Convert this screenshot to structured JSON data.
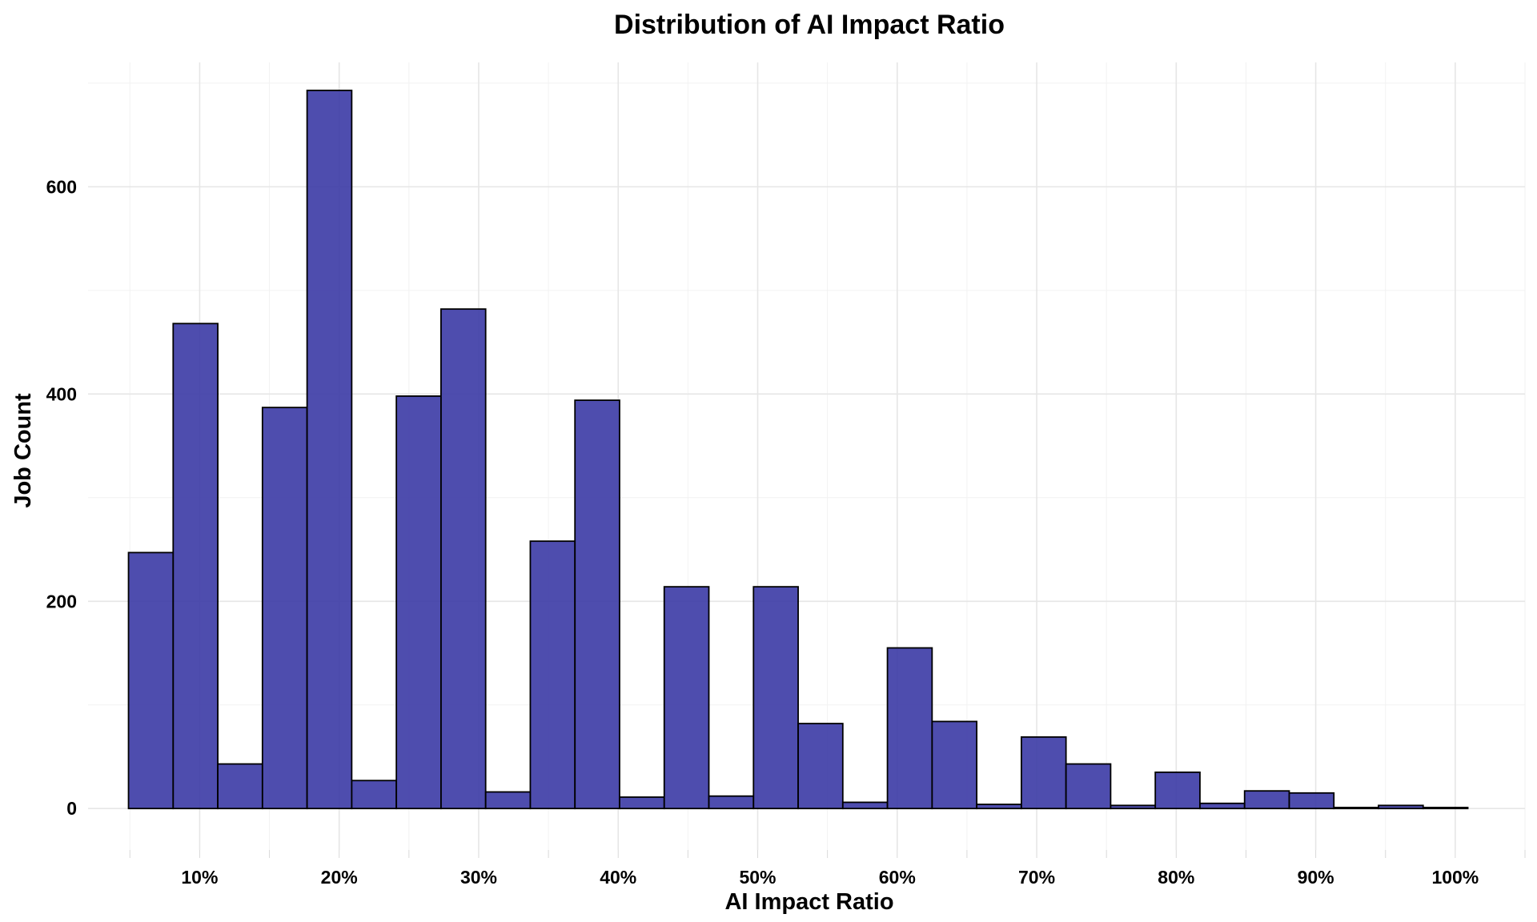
{
  "chart_data": {
    "type": "bar",
    "chart_subtype": "histogram",
    "title": "Distribution of AI Impact Ratio",
    "xlabel": "AI Impact Ratio",
    "ylabel": "Job Count",
    "bar_color": "#3b3aa5",
    "bar_outline_color": "#000000",
    "grid": true,
    "legend": "none",
    "xlim": [
      0.02,
      1.05
    ],
    "ylim": [
      -40,
      720
    ],
    "x_ticks": [
      0.1,
      0.2,
      0.3,
      0.4,
      0.5,
      0.6,
      0.7,
      0.8,
      0.9,
      1.0
    ],
    "x_tick_labels": [
      "10%",
      "20%",
      "30%",
      "40%",
      "50%",
      "60%",
      "70%",
      "80%",
      "90%",
      "100%"
    ],
    "y_ticks": [
      0,
      200,
      400,
      600
    ],
    "y_tick_labels": [
      "0",
      "200",
      "400",
      "600"
    ],
    "bins": [
      {
        "x0": 0.049,
        "x1": 0.081,
        "count": 247
      },
      {
        "x0": 0.081,
        "x1": 0.113,
        "count": 468
      },
      {
        "x0": 0.113,
        "x1": 0.145,
        "count": 43
      },
      {
        "x0": 0.145,
        "x1": 0.177,
        "count": 387
      },
      {
        "x0": 0.177,
        "x1": 0.209,
        "count": 693
      },
      {
        "x0": 0.209,
        "x1": 0.241,
        "count": 27
      },
      {
        "x0": 0.241,
        "x1": 0.273,
        "count": 398
      },
      {
        "x0": 0.273,
        "x1": 0.305,
        "count": 482
      },
      {
        "x0": 0.305,
        "x1": 0.337,
        "count": 16
      },
      {
        "x0": 0.337,
        "x1": 0.369,
        "count": 258
      },
      {
        "x0": 0.369,
        "x1": 0.401,
        "count": 394
      },
      {
        "x0": 0.401,
        "x1": 0.433,
        "count": 11
      },
      {
        "x0": 0.433,
        "x1": 0.465,
        "count": 214
      },
      {
        "x0": 0.465,
        "x1": 0.497,
        "count": 12
      },
      {
        "x0": 0.497,
        "x1": 0.529,
        "count": 214
      },
      {
        "x0": 0.529,
        "x1": 0.561,
        "count": 82
      },
      {
        "x0": 0.561,
        "x1": 0.593,
        "count": 6
      },
      {
        "x0": 0.593,
        "x1": 0.625,
        "count": 155
      },
      {
        "x0": 0.625,
        "x1": 0.657,
        "count": 84
      },
      {
        "x0": 0.657,
        "x1": 0.689,
        "count": 4
      },
      {
        "x0": 0.689,
        "x1": 0.721,
        "count": 69
      },
      {
        "x0": 0.721,
        "x1": 0.753,
        "count": 43
      },
      {
        "x0": 0.753,
        "x1": 0.785,
        "count": 3
      },
      {
        "x0": 0.785,
        "x1": 0.817,
        "count": 35
      },
      {
        "x0": 0.817,
        "x1": 0.849,
        "count": 5
      },
      {
        "x0": 0.849,
        "x1": 0.881,
        "count": 17
      },
      {
        "x0": 0.881,
        "x1": 0.913,
        "count": 15
      },
      {
        "x0": 0.913,
        "x1": 0.945,
        "count": 1
      },
      {
        "x0": 0.945,
        "x1": 0.977,
        "count": 3
      },
      {
        "x0": 0.977,
        "x1": 1.009,
        "count": 1
      }
    ]
  }
}
